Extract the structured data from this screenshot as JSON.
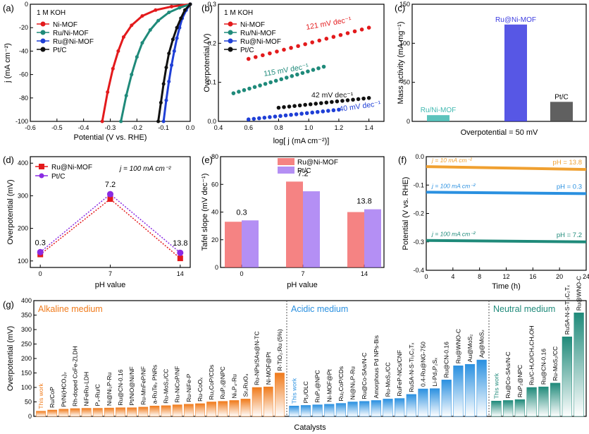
{
  "chart_data": [
    {
      "panel": "(a)",
      "type": "line",
      "annotation": "1 M KOH",
      "xlabel": "Potential (V vs. RHE)",
      "ylabel": "j (mA cm⁻²)",
      "xlim": [
        -0.6,
        0.0
      ],
      "ylim": [
        -100,
        0
      ],
      "xticks": [
        "-0.6",
        "-0.5",
        "-0.4",
        "-0.3",
        "-0.2",
        "-0.1",
        "0.0"
      ],
      "yticks": [
        "0",
        "-20",
        "-40",
        "-60",
        "-80",
        "-100"
      ],
      "series": [
        {
          "name": "Ni-MOF",
          "color": "#e31a1c",
          "points": [
            [
              -0.33,
              -100
            ],
            [
              -0.31,
              -75
            ],
            [
              -0.29,
              -55
            ],
            [
              -0.27,
              -40
            ],
            [
              -0.25,
              -28
            ],
            [
              -0.22,
              -18
            ],
            [
              -0.18,
              -10
            ],
            [
              -0.13,
              -5
            ],
            [
              -0.07,
              -2
            ],
            [
              0.0,
              0
            ]
          ]
        },
        {
          "name": "Ru/Ni-MOF",
          "color": "#1f8a7a",
          "points": [
            [
              -0.26,
              -100
            ],
            [
              -0.24,
              -78
            ],
            [
              -0.22,
              -60
            ],
            [
              -0.2,
              -45
            ],
            [
              -0.18,
              -33
            ],
            [
              -0.15,
              -22
            ],
            [
              -0.12,
              -14
            ],
            [
              -0.08,
              -7
            ],
            [
              -0.04,
              -3
            ],
            [
              0.0,
              0
            ]
          ]
        },
        {
          "name": "Ru@Ni-MOF",
          "color": "#1f3fd6",
          "points": [
            [
              -0.1,
              -100
            ],
            [
              -0.09,
              -82
            ],
            [
              -0.08,
              -66
            ],
            [
              -0.07,
              -52
            ],
            [
              -0.06,
              -40
            ],
            [
              -0.05,
              -29
            ],
            [
              -0.04,
              -20
            ],
            [
              -0.03,
              -12
            ],
            [
              -0.015,
              -5
            ],
            [
              0.0,
              0
            ]
          ]
        },
        {
          "name": "Pt/C",
          "color": "#111111",
          "points": [
            [
              -0.12,
              -100
            ],
            [
              -0.11,
              -84
            ],
            [
              -0.1,
              -68
            ],
            [
              -0.09,
              -54
            ],
            [
              -0.08,
              -42
            ],
            [
              -0.065,
              -30
            ],
            [
              -0.05,
              -20
            ],
            [
              -0.035,
              -12
            ],
            [
              -0.02,
              -5
            ],
            [
              0.0,
              0
            ]
          ]
        }
      ]
    },
    {
      "panel": "(b)",
      "type": "line",
      "annotation": "1 M KOH",
      "xlabel": "log[ j (mA cm⁻²)]",
      "ylabel": "Overpotential (V)",
      "xlim": [
        0.4,
        1.5
      ],
      "ylim": [
        0.0,
        0.3
      ],
      "xticks": [
        "0.4",
        "0.6",
        "0.8",
        "1.0",
        "1.2",
        "1.4"
      ],
      "yticks": [
        "0.0",
        "0.1",
        "0.2",
        "0.3"
      ],
      "series": [
        {
          "name": "Ni-MOF",
          "color": "#e31a1c",
          "x": [
            0.6,
            1.4
          ],
          "y": [
            0.16,
            0.24
          ],
          "label": "121 mV dec⁻¹"
        },
        {
          "name": "Ru/Ni-MOF",
          "color": "#1f8a7a",
          "x": [
            0.5,
            1.1
          ],
          "y": [
            0.072,
            0.14
          ],
          "label": "115 mV dec⁻¹"
        },
        {
          "name": "Ru@Ni-MOF",
          "color": "#1f3fd6",
          "x": [
            0.6,
            1.2
          ],
          "y": [
            0.005,
            0.03
          ],
          "label": "40 mV dec⁻¹"
        },
        {
          "name": "Pt/C",
          "color": "#111111",
          "x": [
            0.8,
            1.4
          ],
          "y": [
            0.035,
            0.06
          ],
          "label": "42 mV dec⁻¹"
        }
      ]
    },
    {
      "panel": "(c)",
      "type": "bar",
      "ylabel": "Mass activity (mA mg⁻¹)",
      "xlabel": "Overpotential = 50 mV",
      "ylim": [
        0,
        150
      ],
      "yticks": [
        "0",
        "50",
        "100",
        "150"
      ],
      "categories": [
        "Ru/Ni-MOF",
        "Ru@Ni-MOF",
        "Pt/C"
      ],
      "values": [
        8,
        124,
        25
      ],
      "colors": [
        "#3fb8b0",
        "#3a3ae0",
        "#444444"
      ]
    },
    {
      "panel": "(d)",
      "type": "line",
      "xlabel": "pH value",
      "ylabel": "Overpotential (mV)",
      "annotation": "j = 100 mA cm⁻²",
      "xlim": [
        -1,
        15
      ],
      "ylim": [
        80,
        420
      ],
      "xticks": [
        "0",
        "7",
        "14"
      ],
      "yticks": [
        "100",
        "200",
        "300",
        "400"
      ],
      "x": [
        0,
        7,
        14
      ],
      "point_labels": [
        "0.3",
        "7.2",
        "13.8"
      ],
      "series": [
        {
          "name": "Ru@Ni-MOF",
          "color": "#e31a1c",
          "values": [
            120,
            290,
            108
          ]
        },
        {
          "name": "Pt/C",
          "color": "#8a2be2",
          "values": [
            127,
            305,
            125
          ]
        }
      ]
    },
    {
      "panel": "(e)",
      "type": "bar",
      "xlabel": "pH value",
      "ylabel": "Tafel slope (mV dec⁻¹)",
      "ylim": [
        0,
        80
      ],
      "yticks": [
        "0",
        "20",
        "40",
        "60",
        "80"
      ],
      "categories": [
        "0",
        "7",
        "14"
      ],
      "group_labels": [
        "0.3",
        "7.2",
        "13.8"
      ],
      "series": [
        {
          "name": "Ru@Ni-MOF",
          "color": "#f25a5a",
          "values": [
            33,
            62,
            40
          ]
        },
        {
          "name": "Pt/C",
          "color": "#9b6af0",
          "values": [
            34,
            55,
            42
          ]
        }
      ]
    },
    {
      "panel": "(f)",
      "type": "line",
      "xlabel": "Time (h)",
      "ylabel": "Potential (V vs. RHE)",
      "xlim": [
        0,
        24
      ],
      "ylim": [
        -0.4,
        0.0
      ],
      "xticks": [
        "0",
        "4",
        "8",
        "12",
        "16",
        "20",
        "24"
      ],
      "yticks": [
        "0.0",
        "-0.1",
        "-0.2",
        "-0.3",
        "-0.4"
      ],
      "series": [
        {
          "name": "pH = 13.8",
          "color": "#f0a030",
          "current": "j = 10 mA cm⁻²",
          "x": [
            0,
            24
          ],
          "y": [
            -0.035,
            -0.045
          ]
        },
        {
          "name": "pH = 0.3",
          "color": "#2a90e0",
          "current": "j = 100 mA cm⁻²",
          "x": [
            0,
            24
          ],
          "y": [
            -0.125,
            -0.13
          ]
        },
        {
          "name": "pH = 7.2",
          "color": "#1f8a7a",
          "current": "j = 100 mA cm⁻²",
          "x": [
            0,
            24
          ],
          "y": [
            -0.295,
            -0.3
          ]
        }
      ]
    },
    {
      "panel": "(g)",
      "type": "bar",
      "xlabel": "Catalysts",
      "ylabel": "Overpotential (mV)",
      "ylim": [
        0,
        400
      ],
      "yticks": [
        "0",
        "50",
        "100",
        "150",
        "200",
        "250",
        "300",
        "350",
        "400"
      ],
      "groups": [
        {
          "name": "Alkaline medium",
          "color": "#f07a1a",
          "this_work": "This work",
          "categories": [
            "This work",
            "Ru/CoP",
            "Pt/Ni(HCO₃)₂",
            "Rh-doped CoFe-ZLDH",
            "NiFeRu-LDH",
            "P₃-Ru/C",
            "Ni@Ni₂P-Ru",
            "Ru@CN-0.16",
            "Pt/NiO@Ni/NF",
            "Ru-MnFeP/NF",
            "a-RuTe₂ PNRs",
            "Ru-MoS₂/CC",
            "Ru-NiCoP/NF",
            "Ru-NiFe-P",
            "Ru-CoOₓ",
            "Ru₂CoP/CDs",
            "RuP₂@NPC",
            "Ni₅P₄-Ru",
            "Sr₂RuO₄",
            "Ru-NPs/SAs@N-TC",
            "Ni-MOF@Pt",
            "R-TiO₂:Ru (5%)"
          ],
          "values": [
            18,
            22,
            25,
            27,
            28,
            28,
            29,
            30,
            30,
            32,
            36,
            37,
            40,
            42,
            44,
            50,
            52,
            55,
            60,
            100,
            102,
            150
          ]
        },
        {
          "name": "Acidic medium",
          "color": "#2a90e0",
          "this_work": "This work",
          "categories": [
            "This work",
            "Pt₃/OLC",
            "RuP₂@NPC",
            "Ni-MOF@Pt",
            "Ru₂CoP/CDs",
            "Ni@Ni₂P-Ru",
            "Ru@Co-SAs/N-C",
            "Amorphous Pd NPs-Bis",
            "Ru-MoS₂/CC",
            "RuFeP-NCs/CNF",
            "RuSA-N-S-Ti₃C₂Tₓ",
            "0.4-Ru@NG-750",
            "Li-Pd₃P₂Sₓ",
            "Ru@CN-0.16",
            "Ru@WNO-C",
            "Au@MoS₂",
            "Ag@MoS₂"
          ],
          "values": [
            36,
            38,
            40,
            42,
            45,
            50,
            52,
            55,
            60,
            62,
            76,
            95,
            96,
            126,
            175,
            180,
            195
          ]
        },
        {
          "name": "Neutral medium",
          "color": "#1f8a7a",
          "this_work": "This work",
          "categories": [
            "This work",
            "Ru@Co-SAs/N-C",
            "RuP₂@NPC",
            "Ru/C-H₂O/CH₃CH₂OH",
            "Ru@CN-0.16",
            "Ru-MoS₂/CC",
            "RuSA-N-S-Ti₃C₂Tₓ",
            "Ru@WNO-C"
          ],
          "values": [
            53,
            55,
            58,
            100,
            102,
            115,
            275,
            358
          ]
        }
      ]
    }
  ]
}
